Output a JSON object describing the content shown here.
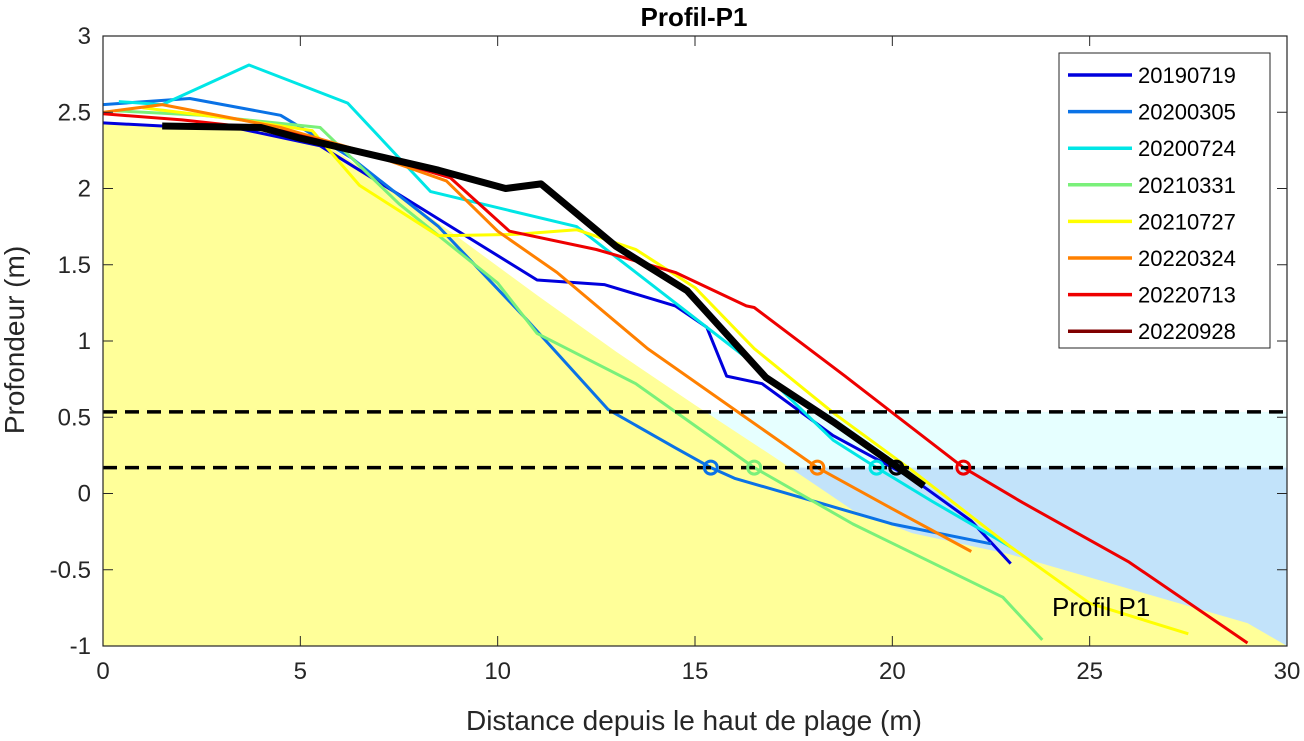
{
  "chart_data": {
    "type": "line",
    "title": "Profil-P1",
    "xlabel": "Distance depuis le haut de plage (m)",
    "ylabel": "Profondeur (m)",
    "xlim": [
      0,
      30
    ],
    "ylim": [
      -1,
      3
    ],
    "xticks": [
      0,
      5,
      10,
      15,
      20,
      25,
      30
    ],
    "yticks": [
      -1,
      -0.5,
      0,
      0.5,
      1,
      1.5,
      2,
      2.5,
      3
    ],
    "ytick_labels": [
      "-1",
      "-0.5",
      "0",
      "0.5",
      "1",
      "1.5",
      "2",
      "2.5",
      "3"
    ],
    "grid": false,
    "legend_position": "top-right",
    "annotation": "Profil P1",
    "colors": {
      "sand": "#ffff99",
      "water_band": "#e6ffff",
      "water_deep": "#c2e3fa"
    },
    "water_levels": [
      0.535,
      0.17
    ],
    "beach_profile": {
      "x": [
        0,
        1.5,
        4,
        5.5,
        7,
        9,
        11,
        13,
        15,
        17,
        19,
        20.5,
        23,
        25,
        27,
        29,
        30
      ],
      "y": [
        2.43,
        2.41,
        2.39,
        2.32,
        2.05,
        1.68,
        1.3,
        0.93,
        0.58,
        0.24,
        -0.11,
        -0.26,
        -0.4,
        -0.55,
        -0.7,
        -0.85,
        -1.0
      ]
    },
    "series": [
      {
        "name": "20190719",
        "color": "#0000dd",
        "width": 3,
        "x": [
          0,
          1.5,
          3.5,
          5.5,
          8.5,
          11,
          12.7,
          14.5,
          15.3,
          15.8,
          16.7,
          18.5,
          20.5,
          22,
          23
        ],
        "y": [
          2.43,
          2.41,
          2.39,
          2.28,
          1.8,
          1.4,
          1.37,
          1.23,
          1.09,
          0.77,
          0.72,
          0.38,
          0.1,
          -0.18,
          -0.46
        ],
        "marker": null
      },
      {
        "name": "20200305",
        "color": "#0a72e6",
        "width": 3,
        "x": [
          0,
          2.2,
          4.5,
          6.3,
          8.5,
          10.7,
          12.8,
          14.5,
          15.4,
          16,
          18,
          20,
          22.5
        ],
        "y": [
          2.55,
          2.59,
          2.48,
          2.2,
          1.75,
          1.15,
          0.55,
          0.3,
          0.17,
          0.1,
          -0.05,
          -0.2,
          -0.33
        ],
        "marker": [
          15.4,
          0.17
        ]
      },
      {
        "name": "20200724",
        "color": "#00e6e6",
        "width": 3,
        "x": [
          0.4,
          1.5,
          3.7,
          6.2,
          8.3,
          12,
          14.5,
          16.5,
          18.5,
          19.6,
          21,
          23
        ],
        "y": [
          2.57,
          2.55,
          2.81,
          2.56,
          1.98,
          1.75,
          1.25,
          0.85,
          0.35,
          0.17,
          -0.05,
          -0.35
        ],
        "marker": [
          19.6,
          0.17
        ]
      },
      {
        "name": "20210331",
        "color": "#7af07a",
        "width": 3,
        "x": [
          0.3,
          2.5,
          5.5,
          7.5,
          10,
          11,
          13.5,
          16.5,
          19,
          22.8,
          23.8
        ],
        "y": [
          2.51,
          2.48,
          2.4,
          1.9,
          1.38,
          1.05,
          0.72,
          0.17,
          -0.2,
          -0.68,
          -0.96
        ],
        "marker": [
          16.5,
          0.17
        ]
      },
      {
        "name": "20210727",
        "color": "#ffff00",
        "width": 3,
        "x": [
          1,
          3.5,
          5.3,
          6.5,
          8.5,
          10.5,
          12,
          13.5,
          15,
          16.5,
          18.5,
          20.5,
          23,
          25,
          27.5
        ],
        "y": [
          2.53,
          2.45,
          2.38,
          2.02,
          1.69,
          1.7,
          1.73,
          1.6,
          1.35,
          0.95,
          0.53,
          0.15,
          -0.35,
          -0.72,
          -0.92
        ],
        "marker": null
      },
      {
        "name": "20220324",
        "color": "#ff8000",
        "width": 3,
        "x": [
          0,
          1.5,
          4.5,
          6.5,
          8.7,
          10,
          11.5,
          13.8,
          16,
          18.1,
          20,
          22
        ],
        "y": [
          2.5,
          2.55,
          2.4,
          2.25,
          2.05,
          1.72,
          1.45,
          0.95,
          0.55,
          0.17,
          -0.1,
          -0.38
        ],
        "marker": [
          18.1,
          0.17
        ]
      },
      {
        "name": "20220713",
        "color": "#ee0000",
        "width": 3,
        "x": [
          0,
          2,
          4.5,
          6.5,
          8.8,
          10.3,
          12.5,
          14.5,
          16.3,
          16.5,
          18.8,
          21.8,
          23.3,
          26,
          29
        ],
        "y": [
          2.49,
          2.45,
          2.38,
          2.25,
          2.07,
          1.72,
          1.6,
          1.45,
          1.23,
          1.22,
          0.77,
          0.17,
          -0.06,
          -0.45,
          -0.98
        ],
        "marker": [
          21.8,
          0.17
        ]
      },
      {
        "name": "20220928",
        "color": "#000000",
        "legend_color": "#800000",
        "width": 7,
        "x": [
          1.5,
          4,
          5,
          6.5,
          8.5,
          10.2,
          11.1,
          13,
          14.8,
          16.8,
          18.5,
          20.1,
          20.8
        ],
        "y": [
          2.41,
          2.4,
          2.33,
          2.24,
          2.12,
          2.0,
          2.03,
          1.62,
          1.33,
          0.76,
          0.47,
          0.18,
          0.05
        ],
        "marker": [
          20.1,
          0.17
        ]
      }
    ]
  }
}
